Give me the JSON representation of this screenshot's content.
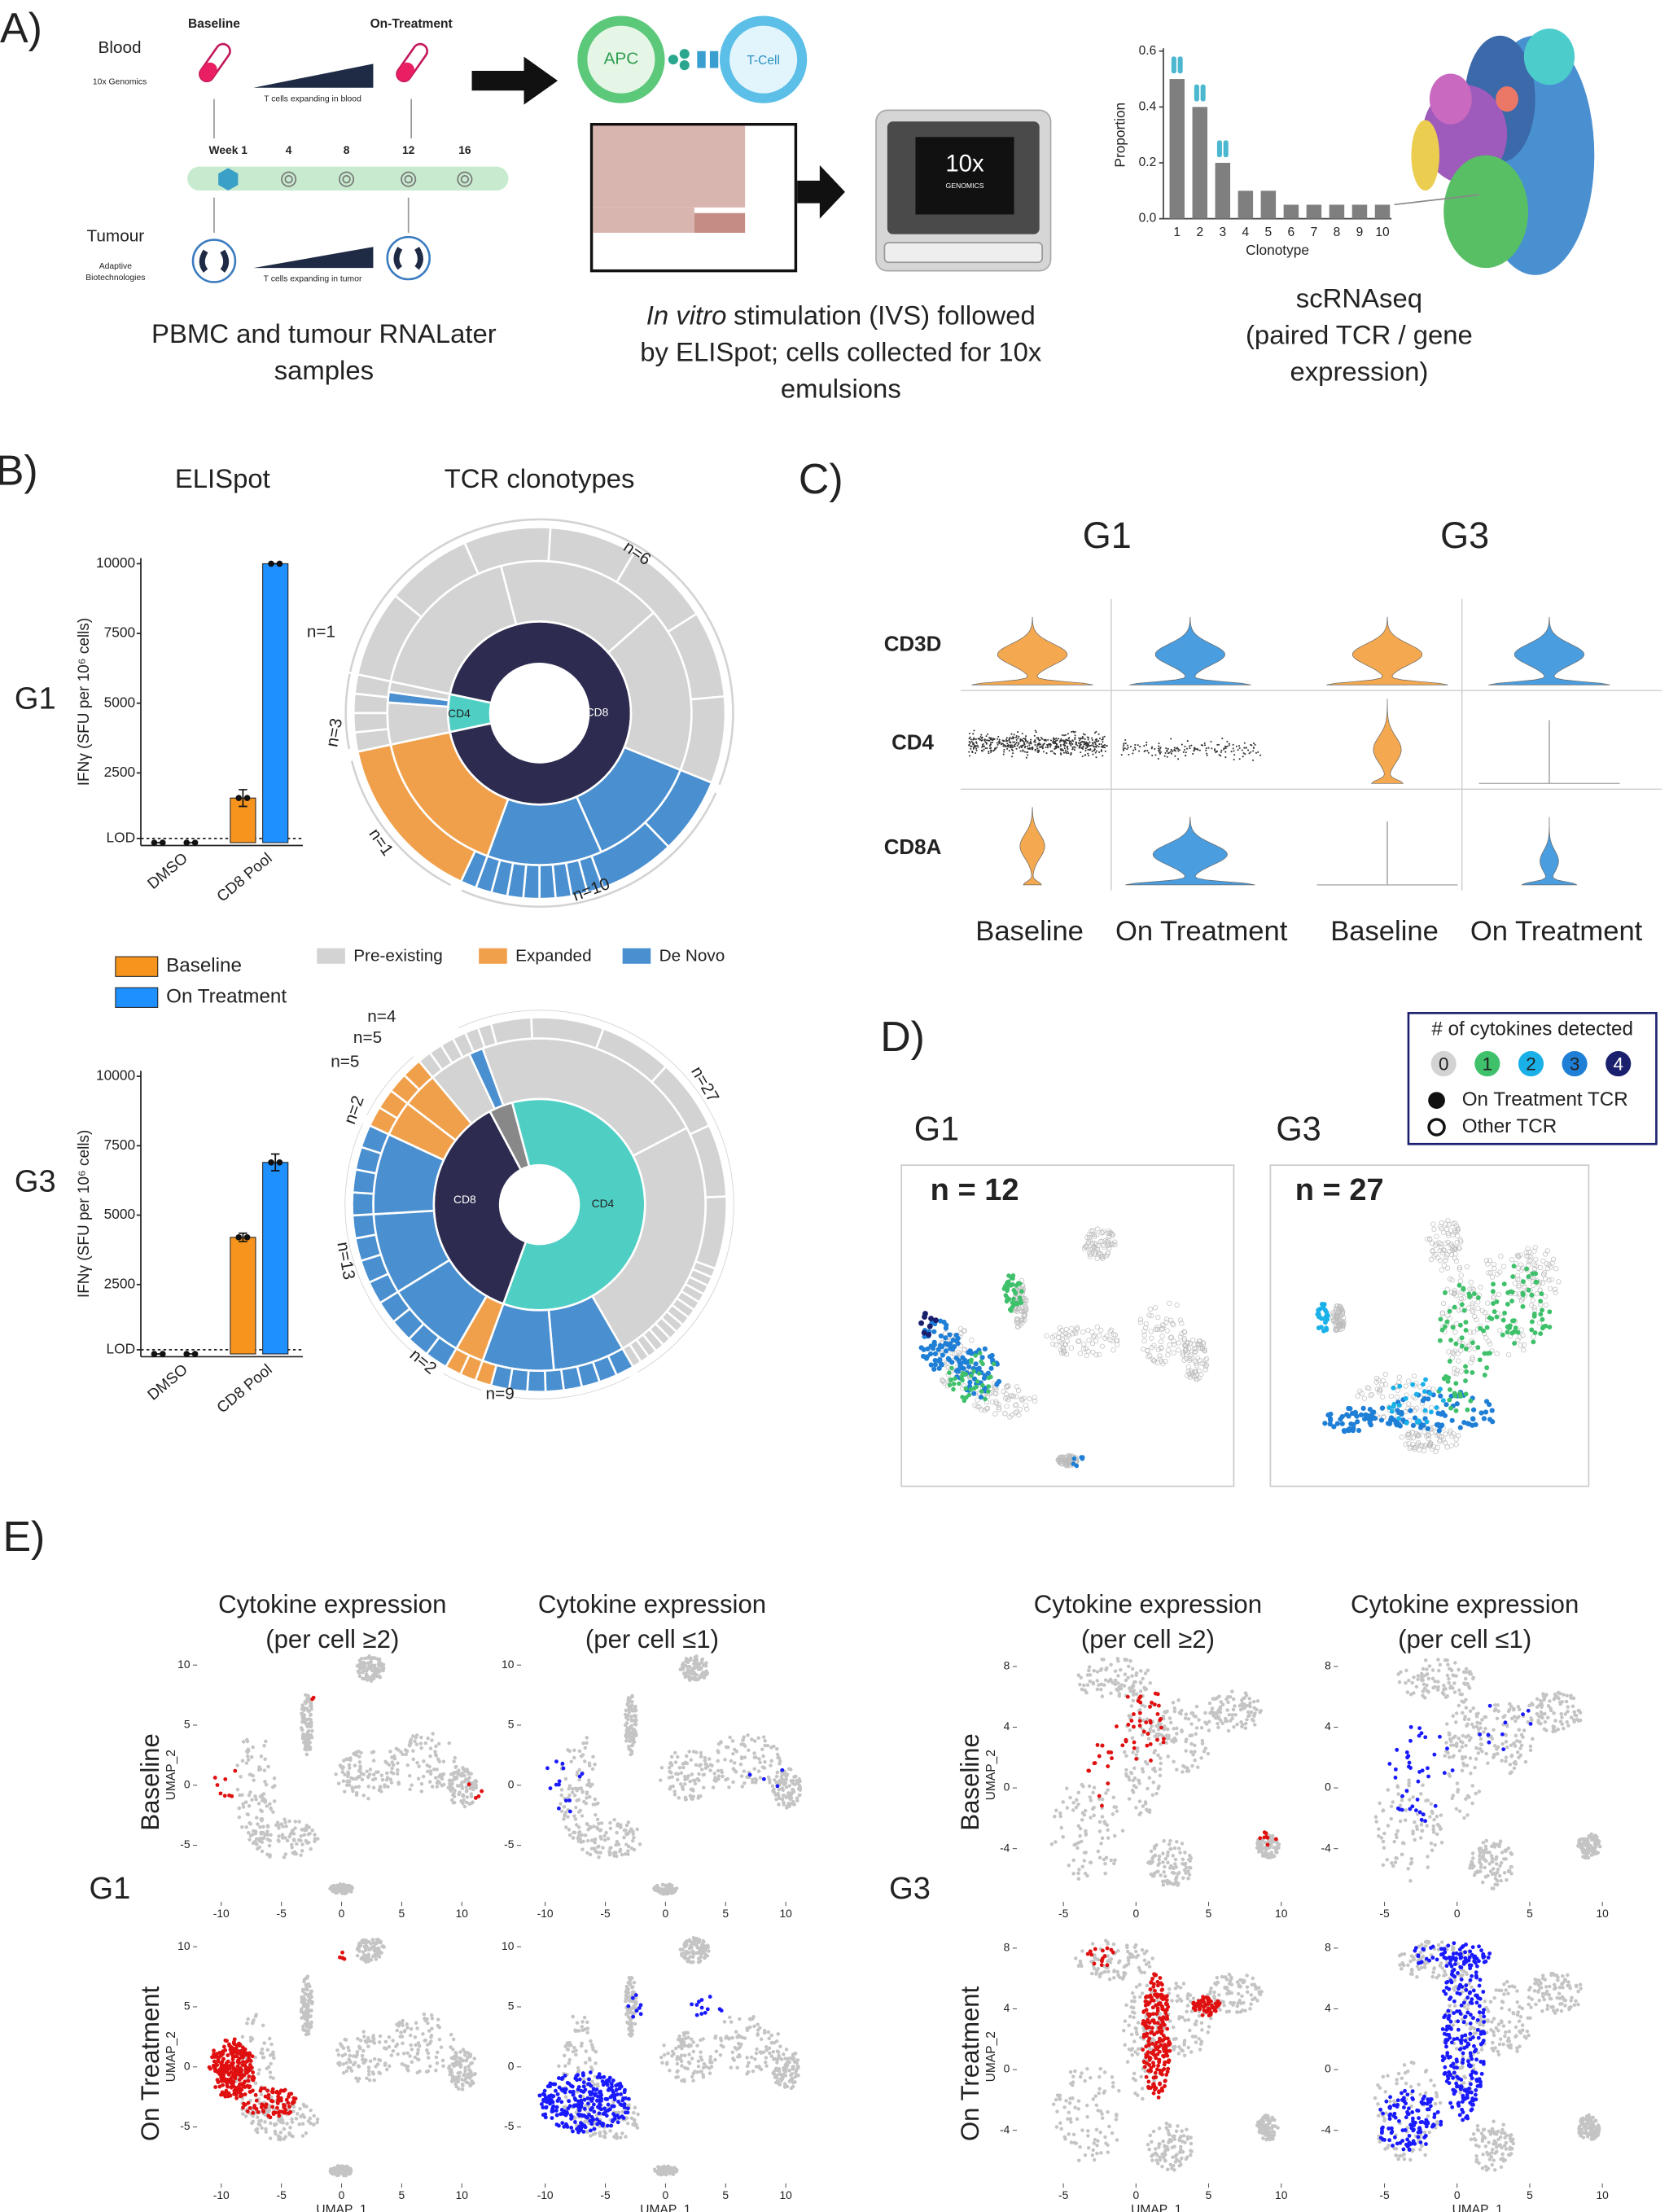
{
  "panel_labels": [
    "A)",
    "B)",
    "C)",
    "D)",
    "E)"
  ],
  "panel_a": {
    "blood": "Blood",
    "blood_source": "10x Genomics",
    "baseline": "Baseline",
    "on_treatment": "On-Treatment",
    "blood_expanding": "T cells expanding in blood",
    "weeks": [
      "Week 1",
      "4",
      "8",
      "12",
      "16"
    ],
    "tumour": "Tumour",
    "tumour_source": [
      "Adaptive",
      "Biotechnologies"
    ],
    "tumour_expanding": "T cells expanding in tumor",
    "samples_caption": [
      "PBMC and tumour RNALater",
      "samples"
    ],
    "apc": "APC",
    "tcell": "T-Cell",
    "device": [
      "10x",
      "GENOMICS"
    ],
    "ivs_caption": {
      "italic": "In vitro",
      "rest": "stimulation (IVS) followed",
      "lines": [
        "by ELISpot; cells collected for 10x",
        "emulsions"
      ]
    },
    "scrnaseq_caption": [
      "scRNAseq",
      "(paired TCR / gene",
      "expression)"
    ]
  },
  "chart_data": [
    {
      "type": "bar",
      "xlabel": "Clonotype",
      "ylabel": "Proportion",
      "categories": [
        "1",
        "2",
        "3",
        "4",
        "5",
        "6",
        "7",
        "8",
        "9",
        "10"
      ],
      "values": [
        0.5,
        0.4,
        0.2,
        0.1,
        0.1,
        0.05,
        0.05,
        0.05,
        0.05,
        0.05
      ],
      "color": "#7f7f7f",
      "ylim": [
        0,
        0.6
      ],
      "yticks": [
        {
          "value": 0,
          "label": "0.0"
        },
        0.2,
        0.4,
        0.6
      ]
    },
    {
      "type": "bar",
      "ylabel": "IFNγ (SFU per 10⁶ cells)",
      "categories": [
        "DMSO",
        "CD8 Pool"
      ],
      "series": [
        {
          "name": "Baseline",
          "color": "#f7941d",
          "values": [
            0,
            1600
          ],
          "errors": [
            0,
            300
          ]
        },
        {
          "name": "On Treatment",
          "color": "#1e90ff",
          "values": [
            0,
            10000
          ],
          "errors": [
            0,
            0
          ]
        }
      ],
      "ylim": [
        -100,
        10200
      ],
      "yticks": [
        {
          "value": 150,
          "label": "LOD"
        },
        2500,
        5000,
        7500,
        10000
      ]
    },
    {
      "type": "bar",
      "ylabel": "IFNγ (SFU per 10⁶ cells)",
      "categories": [
        "DMSO",
        "CD8 Pool"
      ],
      "series": [
        {
          "color": "#f7941d",
          "values": [
            0,
            4200
          ],
          "errors": [
            0,
            150
          ]
        },
        {
          "color": "#1e90ff",
          "values": [
            0,
            6900
          ],
          "errors": [
            0,
            300
          ]
        }
      ],
      "ylim": [
        -100,
        10200
      ],
      "yticks": [
        {
          "value": 150,
          "label": "LOD"
        },
        2500,
        5000,
        7500,
        10000
      ]
    }
  ],
  "panel_b": {
    "elispot_title": "ELISpot",
    "tcr_title": "TCR clonotypes",
    "groups": [
      "G1",
      "G3"
    ],
    "clonotype_legend": [
      {
        "name": "Pre-existing",
        "color": "#d3d3d3"
      },
      {
        "name": "Expanded",
        "color": "#f0a04b"
      },
      {
        "name": "De Novo",
        "color": "#4a8fcf"
      }
    ],
    "g1_sunburst": {
      "inner": [
        "CD4",
        "CD8"
      ],
      "counts": [
        "n=6",
        "n=1",
        "n=3",
        "n=1",
        "n=10"
      ]
    },
    "g3_sunburst": {
      "inner": [
        "CD8",
        "CD4"
      ],
      "counts": [
        "n=4",
        "n=5",
        "n=5",
        "n=2",
        "n=27",
        "n=13",
        "n=2",
        "n=9"
      ]
    }
  },
  "panel_c": {
    "groups": [
      "G1",
      "G3"
    ],
    "genes": [
      "CD3D",
      "CD4",
      "CD8A"
    ],
    "conditions": [
      "Baseline",
      "On Treatment"
    ]
  },
  "panel_d": {
    "legend_title": "# of cytokines detected",
    "levels": [
      {
        "label": "0",
        "color": "#d3d3d3"
      },
      {
        "label": "1",
        "color": "#3fc06b"
      },
      {
        "label": "2",
        "color": "#1ab0e8"
      },
      {
        "label": "3",
        "color": "#1f7fd6"
      },
      {
        "label": "4",
        "color": "#1a1f6e"
      }
    ],
    "tcr_legend": [
      "On Treatment TCR",
      "Other TCR"
    ],
    "groups": [
      "G1",
      "G3"
    ],
    "counts": [
      "n = 12",
      "n = 27"
    ]
  },
  "panel_e": {
    "headers": [
      [
        "Cytokine expression",
        "(per cell ≥2)"
      ],
      [
        "Cytokine expression",
        "(per cell ≤1)"
      ]
    ],
    "rows": [
      "Baseline",
      "On Treatment"
    ],
    "groups": [
      "G1",
      "G3"
    ],
    "xlabel": "UMAP_1",
    "ylabel": "UMAP_2",
    "axes": [
      {
        "xlim": [
          -12,
          12
        ],
        "xticks": [
          -10,
          -5,
          0,
          5,
          10
        ],
        "ylim": [
          -9.7,
          11.4
        ],
        "yticks": [
          10,
          5,
          0,
          -5
        ]
      },
      {
        "xlim": [
          -8.2,
          11
        ],
        "xticks": [
          -5,
          0,
          5,
          10
        ],
        "ylim": [
          -7.5,
          9.2
        ],
        "yticks": [
          8,
          4,
          0,
          -4
        ]
      }
    ]
  }
}
